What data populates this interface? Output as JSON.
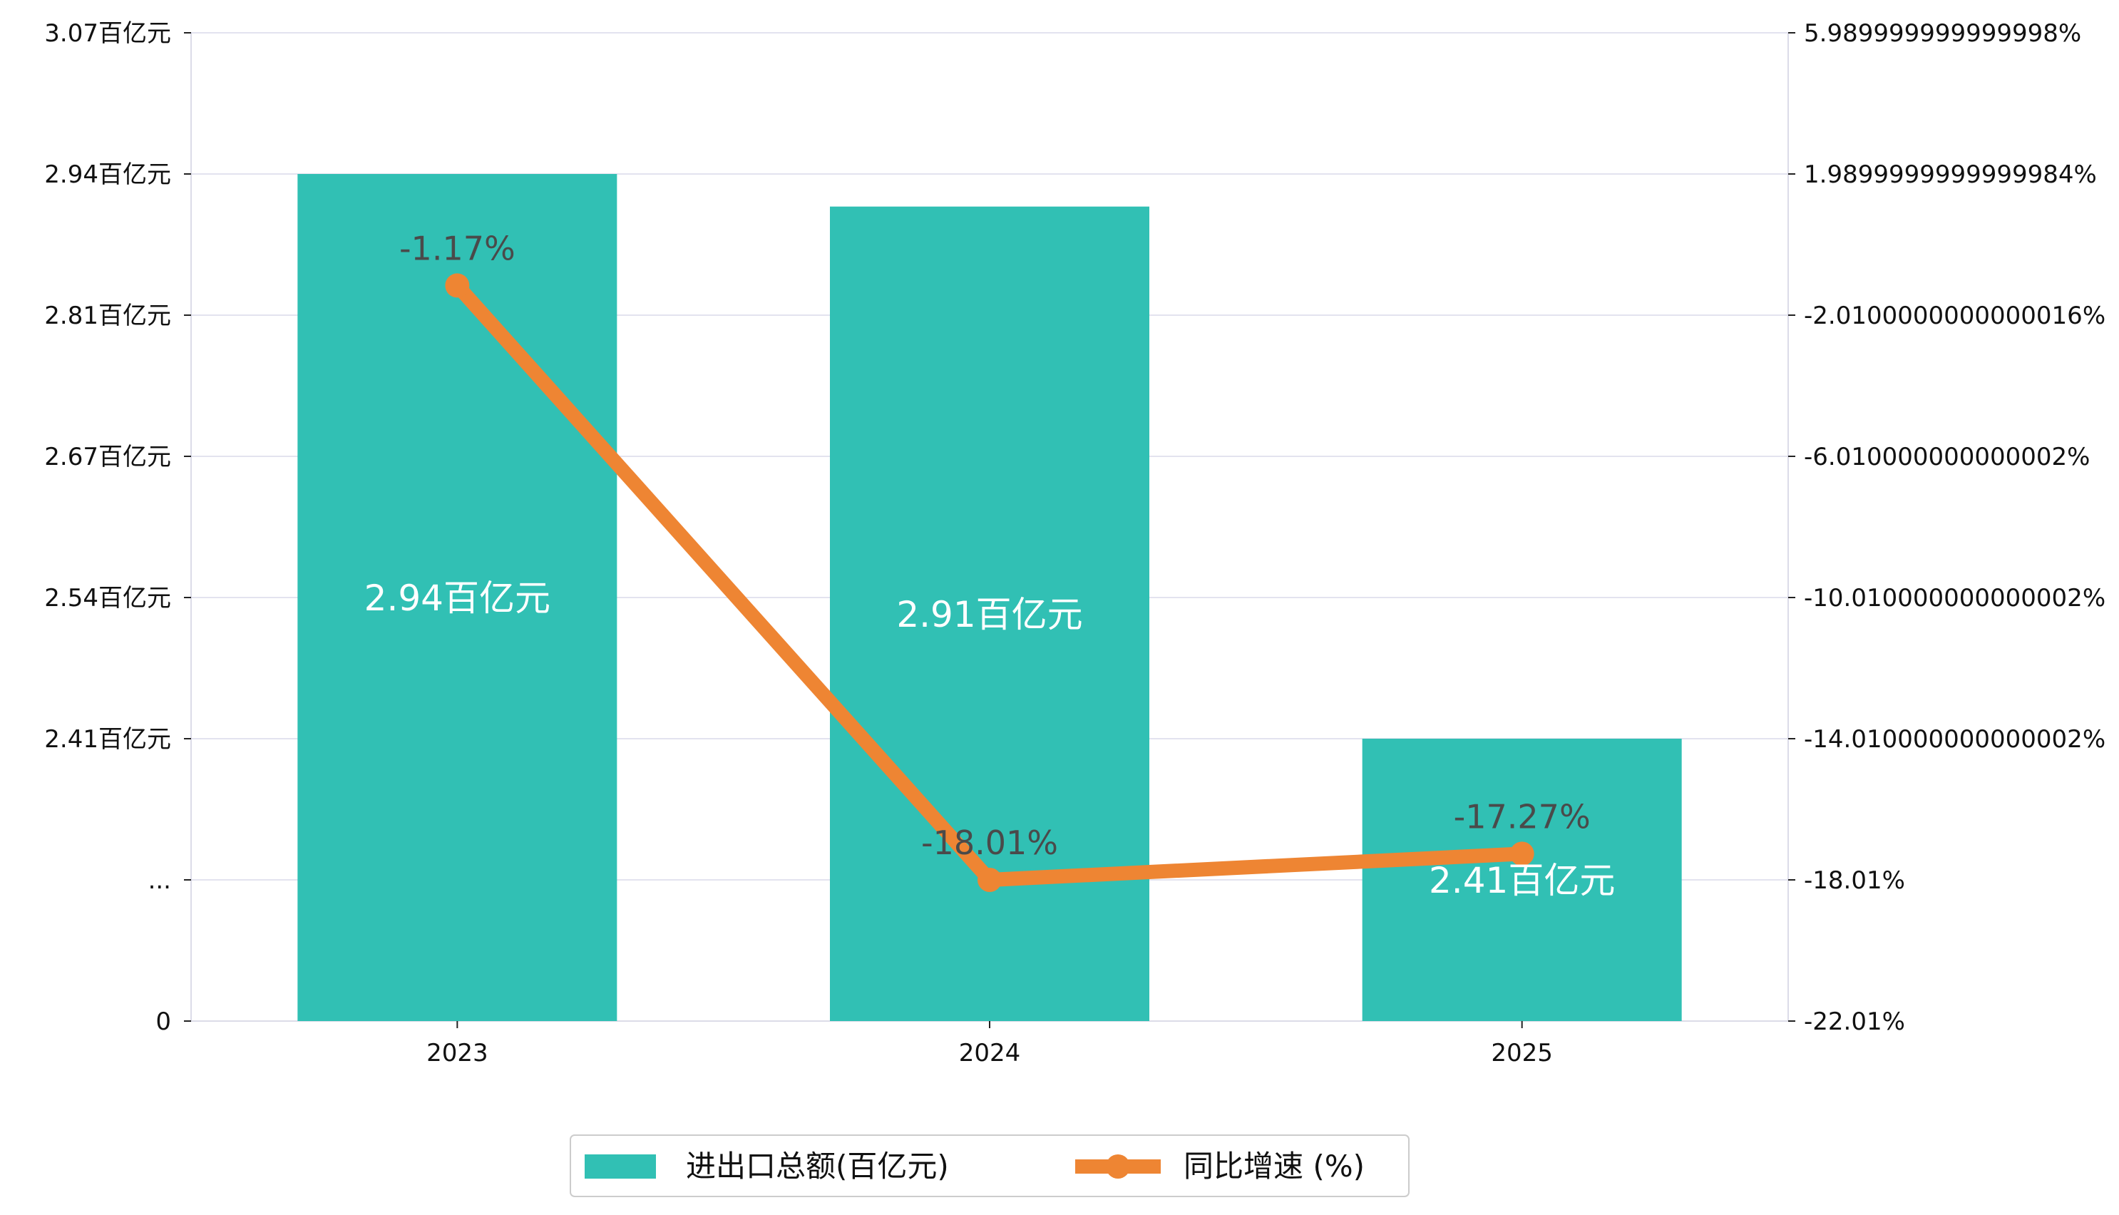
{
  "chart_data": {
    "type": "bar",
    "categories": [
      "2023",
      "2024",
      "2025"
    ],
    "series": [
      {
        "name": "进出口总额(百亿元)",
        "type": "bar",
        "axis": "left",
        "values": [
          2.94,
          2.91,
          2.41
        ],
        "value_labels": [
          "2.94百亿元",
          "2.91百亿元",
          "2.41百亿元"
        ],
        "color": "#31c0b4"
      },
      {
        "name": "同比增速 (%)",
        "type": "line",
        "axis": "right",
        "values": [
          -1.17,
          -18.01,
          -17.27
        ],
        "value_labels": [
          "-1.17%",
          "-18.01%",
          "-17.27%"
        ],
        "color": "#ee8533"
      }
    ],
    "left_axis": {
      "ticks": [
        0,
        2.28,
        2.41,
        2.54,
        2.67,
        2.81,
        2.94,
        3.07
      ],
      "tick_labels": [
        "0",
        "...",
        "2.41百亿元",
        "2.54百亿元",
        "2.67百亿元",
        "2.81百亿元",
        "2.94百亿元",
        "3.07百亿元"
      ],
      "broken": true
    },
    "right_axis": {
      "ylim": [
        -22.01,
        5.99
      ],
      "ticks": [
        -22.01,
        -18.01,
        -14.01,
        -10.01,
        -6.01,
        -2.01,
        1.99,
        5.99
      ],
      "tick_labels": [
        "-22.01%",
        "-18.01%",
        "-14.010000000000002%",
        "-10.010000000000002%",
        "-6.010000000000002%",
        "-2.0100000000000016%",
        "1.9899999999999984%",
        "5.989999999999998%"
      ]
    },
    "grid": true,
    "legend_position": "bottom-center"
  }
}
